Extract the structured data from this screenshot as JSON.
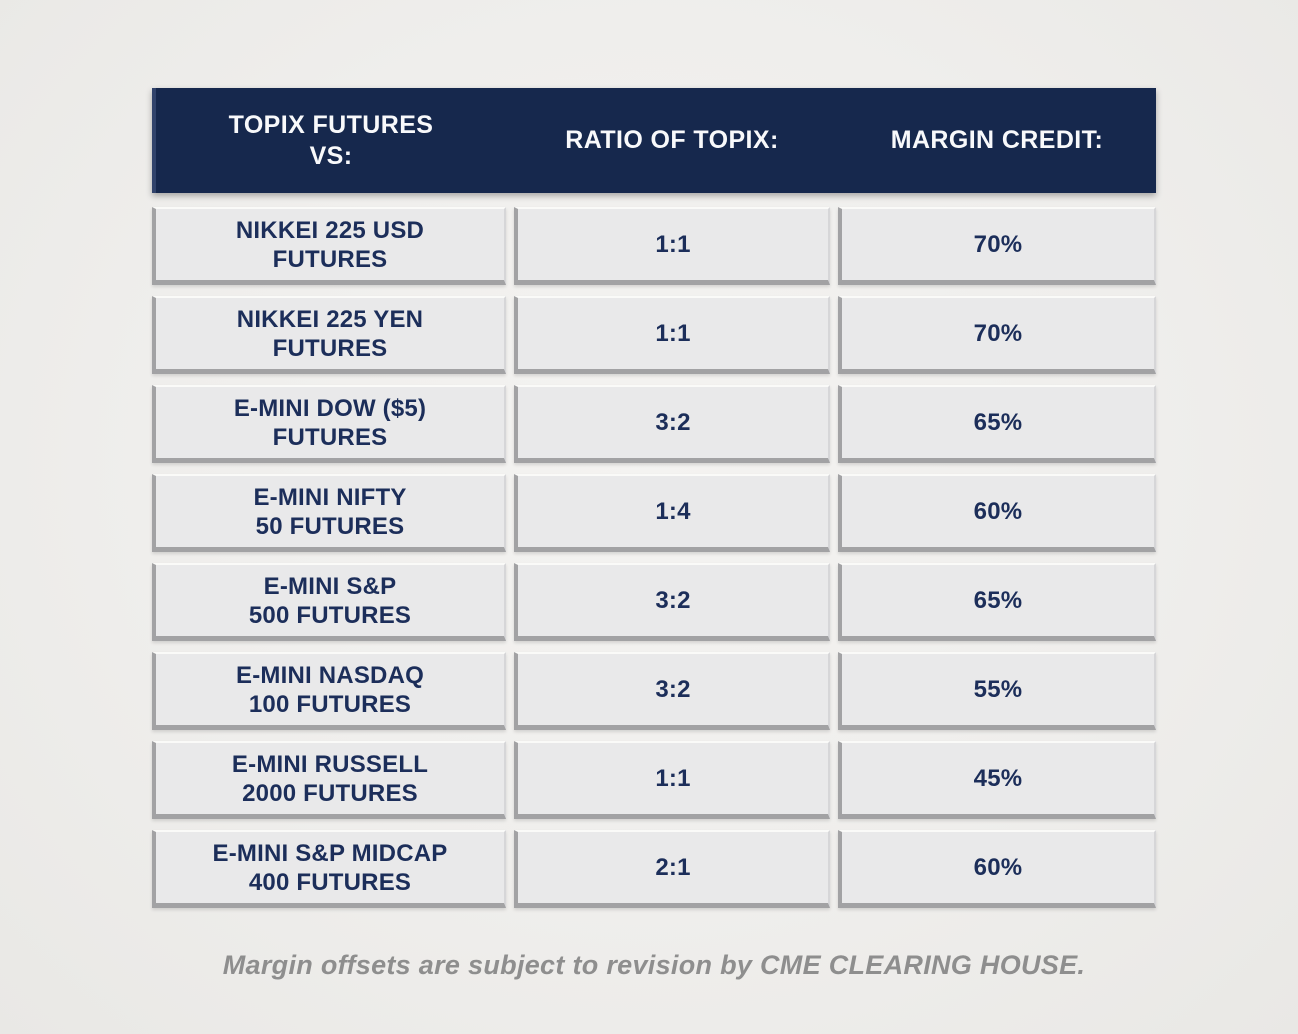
{
  "chart_data": {
    "type": "table",
    "columns": [
      "TOPIX FUTURES VS:",
      "RATIO OF TOPIX:",
      "MARGIN CREDIT:"
    ],
    "rows": [
      [
        "NIKKEI 225 USD FUTURES",
        "1:1",
        "70%"
      ],
      [
        "NIKKEI 225 YEN FUTURES",
        "1:1",
        "70%"
      ],
      [
        "E-MINI DOW ($5) FUTURES",
        "3:2",
        "65%"
      ],
      [
        "E-MINI NIFTY 50 FUTURES",
        "1:4",
        "60%"
      ],
      [
        "E-MINI S&P 500 FUTURES",
        "3:2",
        "65%"
      ],
      [
        "E-MINI NASDAQ 100 FUTURES",
        "3:2",
        "55%"
      ],
      [
        "E-MINI RUSSELL 2000 FUTURES",
        "1:1",
        "45%"
      ],
      [
        "E-MINI S&P MIDCAP 400 FUTURES",
        "2:1",
        "60%"
      ]
    ],
    "footnote": "Margin offsets are subject to revision by CME CLEARING HOUSE."
  },
  "table": {
    "header": {
      "product_line1": "TOPIX FUTURES",
      "product_line2": "VS:",
      "ratio": "RATIO OF TOPIX:",
      "credit": "MARGIN CREDIT:"
    },
    "rows": [
      {
        "product_line1": "NIKKEI 225 USD",
        "product_line2": "FUTURES",
        "ratio": "1:1",
        "credit": "70%"
      },
      {
        "product_line1": "NIKKEI 225 YEN",
        "product_line2": "FUTURES",
        "ratio": "1:1",
        "credit": "70%"
      },
      {
        "product_line1": "E-MINI DOW ($5)",
        "product_line2": "FUTURES",
        "ratio": "3:2",
        "credit": "65%"
      },
      {
        "product_line1": "E-MINI NIFTY",
        "product_line2": "50 FUTURES",
        "ratio": "1:4",
        "credit": "60%"
      },
      {
        "product_line1": "E-MINI S&P",
        "product_line2": "500 FUTURES",
        "ratio": "3:2",
        "credit": "65%"
      },
      {
        "product_line1": "E-MINI NASDAQ",
        "product_line2": "100 FUTURES",
        "ratio": "3:2",
        "credit": "55%"
      },
      {
        "product_line1": "E-MINI RUSSELL",
        "product_line2": "2000 FUTURES",
        "ratio": "1:1",
        "credit": "45%"
      },
      {
        "product_line1": "E-MINI S&P MIDCAP",
        "product_line2": "400 FUTURES",
        "ratio": "2:1",
        "credit": "60%"
      }
    ]
  },
  "footer": {
    "disclaimer": "Margin offsets are subject to revision by CME CLEARING HOUSE."
  },
  "colors": {
    "header_navy": "#16284d",
    "cell_fill": "#e9e9ea",
    "cell_border": "#a2a2a4",
    "text_navy": "#1c2e5a",
    "disclaimer_gray": "#8e8e8e",
    "page_background": "#efeeec"
  }
}
